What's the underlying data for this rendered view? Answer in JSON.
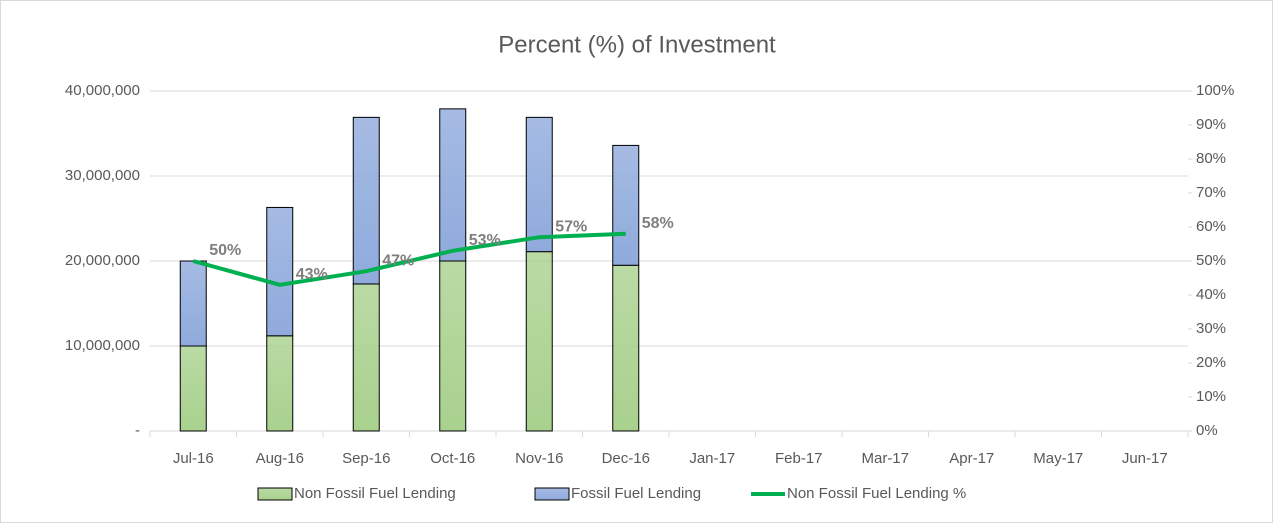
{
  "chart_data": {
    "type": "bar-line",
    "title": "Percent (%) of Investment",
    "categories": [
      "Jul-16",
      "Aug-16",
      "Sep-16",
      "Oct-16",
      "Nov-16",
      "Dec-16",
      "Jan-17",
      "Feb-17",
      "Mar-17",
      "Apr-17",
      "May-17",
      "Jun-17"
    ],
    "series": [
      {
        "name": "Non Fossil Fuel Lending",
        "type": "bar",
        "color": "#a9d18e",
        "values": [
          10000000,
          11200000,
          17300000,
          20000000,
          21100000,
          19500000,
          null,
          null,
          null,
          null,
          null,
          null
        ]
      },
      {
        "name": "Fossil Fuel Lending",
        "type": "bar",
        "color": "#8faadc",
        "values": [
          10000000,
          15100000,
          19600000,
          17900000,
          15800000,
          14100000,
          null,
          null,
          null,
          null,
          null,
          null
        ]
      },
      {
        "name": "Non Fossil Fuel Lending %",
        "type": "line",
        "axis": "y2",
        "color": "#00b050",
        "values": [
          50,
          43,
          47,
          53,
          57,
          58,
          null,
          null,
          null,
          null,
          null,
          null
        ],
        "value_labels": [
          "50%",
          "43%",
          "47%",
          "53%",
          "57%",
          "58%",
          null,
          null,
          null,
          null,
          null,
          null
        ]
      }
    ],
    "ylim": [
      0,
      40000000
    ],
    "yticks": [
      {
        "value": 0,
        "label": "-"
      },
      {
        "value": 10000000,
        "label": "10,000,000"
      },
      {
        "value": 20000000,
        "label": "20,000,000"
      },
      {
        "value": 30000000,
        "label": "30,000,000"
      },
      {
        "value": 40000000,
        "label": "40,000,000"
      }
    ],
    "y2lim": [
      0,
      100
    ],
    "y2ticks": [
      {
        "value": 0,
        "label": "0%"
      },
      {
        "value": 10,
        "label": "10%"
      },
      {
        "value": 20,
        "label": "20%"
      },
      {
        "value": 30,
        "label": "30%"
      },
      {
        "value": 40,
        "label": "40%"
      },
      {
        "value": 50,
        "label": "50%"
      },
      {
        "value": 60,
        "label": "60%"
      },
      {
        "value": 70,
        "label": "70%"
      },
      {
        "value": 80,
        "label": "80%"
      },
      {
        "value": 90,
        "label": "90%"
      },
      {
        "value": 100,
        "label": "100%"
      }
    ],
    "grid": true,
    "legend": "bottom"
  }
}
